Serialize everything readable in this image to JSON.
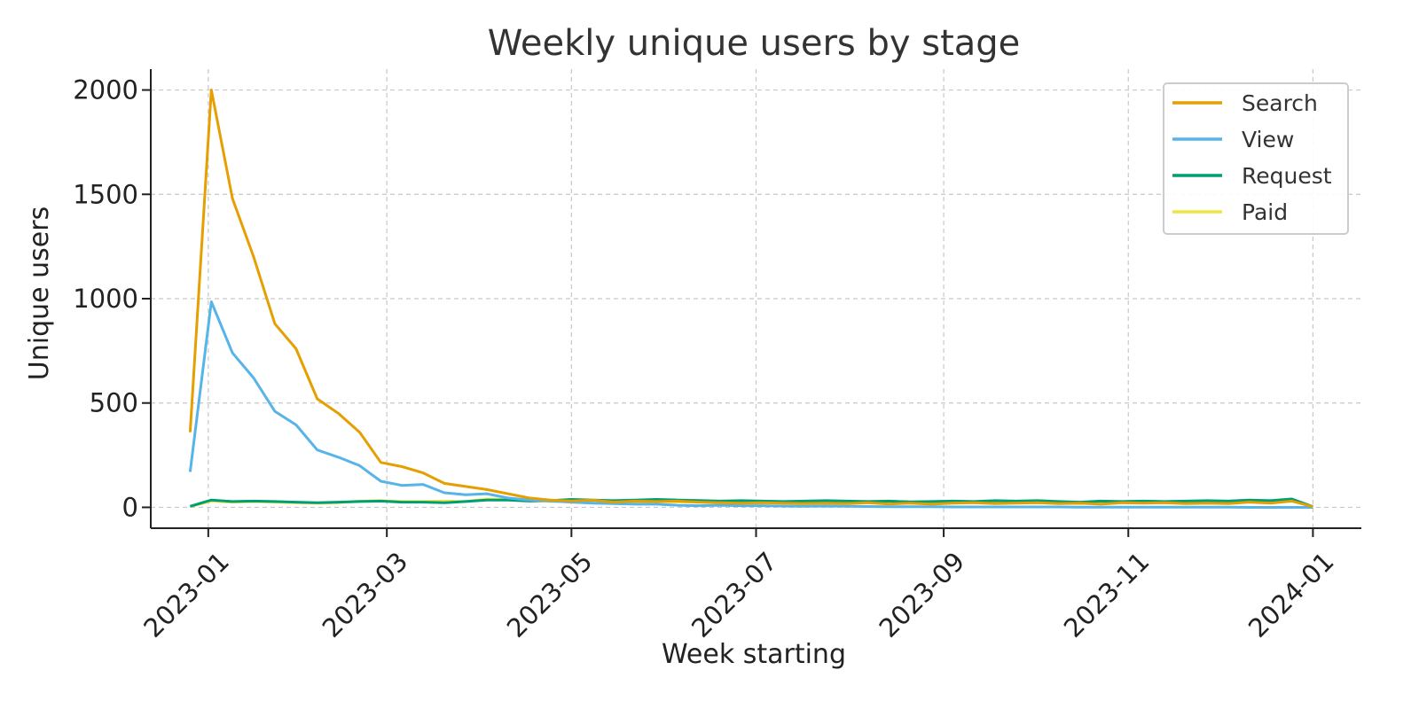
{
  "chart_data": {
    "type": "line",
    "title": "Weekly unique users by stage",
    "xlabel": "Week starting",
    "ylabel": "Unique users",
    "x_axis": {
      "type": "date",
      "range": [
        "2022-12-13",
        "2024-01-17"
      ],
      "ticks": [
        "2023-01-01",
        "2023-03-01",
        "2023-05-01",
        "2023-07-01",
        "2023-09-01",
        "2023-11-01",
        "2024-01-01"
      ],
      "tick_labels": [
        "2023-01",
        "2023-03",
        "2023-05",
        "2023-07",
        "2023-09",
        "2023-11",
        "2024-01"
      ]
    },
    "y_axis": {
      "range": [
        -100,
        2100
      ],
      "ticks": [
        0,
        500,
        1000,
        1500,
        2000
      ],
      "tick_labels": [
        "0",
        "500",
        "1000",
        "1500",
        "2000"
      ]
    },
    "grid": true,
    "legend_position": "top-right",
    "x": [
      "2022-12-26",
      "2023-01-02",
      "2023-01-09",
      "2023-01-16",
      "2023-01-23",
      "2023-01-30",
      "2023-02-06",
      "2023-02-13",
      "2023-02-20",
      "2023-02-27",
      "2023-03-06",
      "2023-03-13",
      "2023-03-20",
      "2023-03-27",
      "2023-04-03",
      "2023-04-10",
      "2023-04-17",
      "2023-04-24",
      "2023-05-01",
      "2023-05-08",
      "2023-05-15",
      "2023-05-22",
      "2023-05-29",
      "2023-06-05",
      "2023-06-12",
      "2023-06-19",
      "2023-06-26",
      "2023-07-03",
      "2023-07-10",
      "2023-07-17",
      "2023-07-24",
      "2023-07-31",
      "2023-08-07",
      "2023-08-14",
      "2023-08-21",
      "2023-08-28",
      "2023-09-04",
      "2023-09-11",
      "2023-09-18",
      "2023-09-25",
      "2023-10-02",
      "2023-10-09",
      "2023-10-16",
      "2023-10-23",
      "2023-10-30",
      "2023-11-06",
      "2023-11-13",
      "2023-11-20",
      "2023-11-27",
      "2023-12-04",
      "2023-12-11",
      "2023-12-18",
      "2023-12-25",
      "2024-01-01"
    ],
    "series": [
      {
        "name": "Search",
        "color": "#E69F00",
        "values": [
          360,
          2000,
          1480,
          1200,
          880,
          760,
          520,
          450,
          360,
          215,
          195,
          165,
          115,
          100,
          85,
          65,
          45,
          35,
          30,
          35,
          25,
          30,
          28,
          30,
          25,
          22,
          20,
          22,
          20,
          18,
          20,
          18,
          22,
          16,
          20,
          15,
          20,
          22,
          18,
          20,
          22,
          18,
          20,
          15,
          22,
          20,
          22,
          18,
          20,
          18,
          25,
          20,
          30,
          3
        ]
      },
      {
        "name": "View",
        "color": "#56B4E9",
        "values": [
          170,
          985,
          740,
          620,
          460,
          395,
          275,
          240,
          200,
          125,
          105,
          110,
          70,
          60,
          65,
          45,
          35,
          30,
          25,
          20,
          18,
          15,
          15,
          10,
          8,
          10,
          8,
          8,
          6,
          5,
          6,
          5,
          4,
          3,
          3,
          3,
          2,
          2,
          2,
          2,
          2,
          2,
          1,
          1,
          1,
          1,
          1,
          1,
          1,
          1,
          0,
          0,
          0,
          0
        ]
      },
      {
        "name": "Request",
        "color": "#009E73",
        "values": [
          5,
          35,
          28,
          30,
          28,
          25,
          22,
          25,
          28,
          30,
          25,
          25,
          22,
          28,
          35,
          35,
          30,
          32,
          38,
          35,
          32,
          35,
          38,
          35,
          33,
          30,
          32,
          30,
          28,
          30,
          32,
          30,
          28,
          30,
          26,
          28,
          30,
          28,
          32,
          30,
          32,
          28,
          25,
          30,
          28,
          30,
          28,
          30,
          32,
          30,
          35,
          32,
          40,
          3
        ]
      },
      {
        "name": "Paid",
        "color": "#F0E442",
        "values": [
          3,
          30,
          25,
          28,
          25,
          22,
          20,
          22,
          30,
          32,
          28,
          28,
          30,
          28,
          40,
          38,
          32,
          28,
          30,
          25,
          22,
          24,
          28,
          26,
          24,
          22,
          20,
          22,
          26,
          28,
          26,
          24,
          28,
          20,
          24,
          22,
          24,
          25,
          22,
          26,
          24,
          22,
          18,
          24,
          26,
          24,
          22,
          24,
          26,
          22,
          32,
          28,
          35,
          2
        ]
      }
    ]
  }
}
